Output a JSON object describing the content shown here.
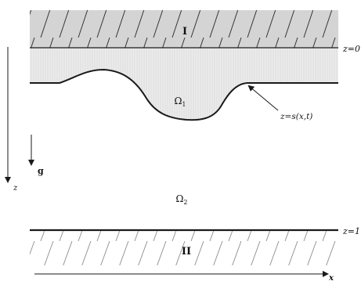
{
  "region_upper_label": "I",
  "region_lower_label": "II",
  "top_surface_label": "z=0",
  "bottom_surface_label": "z=1",
  "interface_label": "z=s(x,t)",
  "layer_one": {
    "base": "Ω",
    "sub": "1"
  },
  "layer_two": {
    "base": "Ω",
    "sub": "2"
  },
  "gravity_label": "g",
  "vertical_axis_label": "z",
  "horizontal_axis_label": "x",
  "colors": {
    "upper_plate_fill": "#d4d4d4",
    "layer_one_fill": "#ececec",
    "line": "#1a1a1a",
    "hatch_upper": "#333333",
    "hatch_lower": "#8c8c8c"
  }
}
